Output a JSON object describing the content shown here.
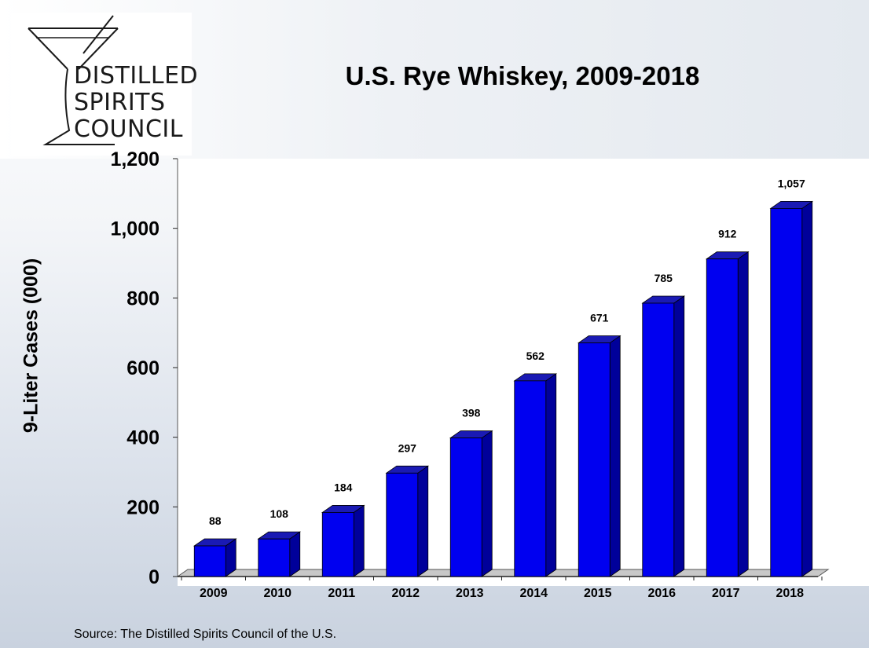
{
  "logo": {
    "lines": [
      "DISTILLED",
      "SPIRITS",
      "COUNCIL"
    ]
  },
  "source_note": "Source:  The Distilled Spirits Council of the U.S.",
  "colors": {
    "bar_front": "#0000f0",
    "bar_side": "#00009a",
    "bar_top": "#1a1ab4",
    "floor": "#c8c8c8"
  },
  "chart_data": {
    "type": "bar",
    "title": "U.S. Rye Whiskey, 2009-2018",
    "xlabel": "",
    "ylabel": "9-Liter Cases (000)",
    "ylim": [
      0,
      1200
    ],
    "yticks": [
      "0",
      "200",
      "400",
      "600",
      "800",
      "1,000",
      "1,200"
    ],
    "categories": [
      "2009",
      "2010",
      "2011",
      "2012",
      "2013",
      "2014",
      "2015",
      "2016",
      "2017",
      "2018"
    ],
    "values": [
      88,
      108,
      184,
      297,
      398,
      562,
      671,
      785,
      912,
      1057
    ],
    "data_labels": [
      "88",
      "108",
      "184",
      "297",
      "398",
      "562",
      "671",
      "785",
      "912",
      "1,057"
    ],
    "grid": false,
    "style": "3d"
  }
}
